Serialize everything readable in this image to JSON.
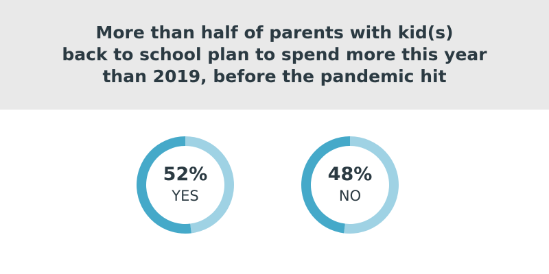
{
  "title_lines": [
    "More than half of parents with kid(s)",
    "back to school plan to spend more this year",
    "than 2019, before the pandemic hit"
  ],
  "colors": {
    "header_bg": "#e9e9e9",
    "title_text": "#2b3a42",
    "primary_segment": "#45a9c9",
    "secondary_segment": "#9fd2e4"
  },
  "chart_data": {
    "type": "pie",
    "title": "More than half of parents with kid(s) back to school plan to spend more this year than 2019, before the pandemic hit",
    "charts": [
      {
        "id": "yes",
        "value": 52,
        "value_label": "52%",
        "category": "YES",
        "remainder": 48
      },
      {
        "id": "no",
        "value": 48,
        "value_label": "48%",
        "category": "NO",
        "remainder": 52
      }
    ]
  }
}
